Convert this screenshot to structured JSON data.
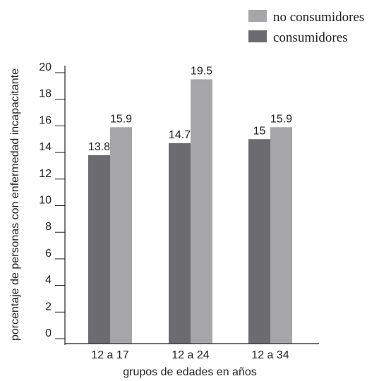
{
  "chart_data": {
    "type": "bar",
    "categories": [
      "12 a 17",
      "12 a 24",
      "12 a 34"
    ],
    "series": [
      {
        "name": "consumidores",
        "values": [
          13.8,
          14.7,
          15
        ],
        "color": "#6b6b70"
      },
      {
        "name": "no consumidores",
        "values": [
          15.9,
          19.5,
          15.9
        ],
        "color": "#a6a6a9"
      }
    ],
    "data_labels": [
      [
        "13.8",
        "14.7",
        "15"
      ],
      [
        "15.9",
        "19.5",
        "15.9"
      ]
    ],
    "yticks": [
      0,
      2,
      4,
      6,
      8,
      10,
      12,
      14,
      16,
      18,
      20
    ],
    "ylim": [
      0,
      20
    ],
    "xlabel": "grupos de edades en años",
    "ylabel": "porcentaje de personas con enfermedad incapacitante",
    "title": "",
    "grid": false,
    "legend_position": "top-right"
  }
}
